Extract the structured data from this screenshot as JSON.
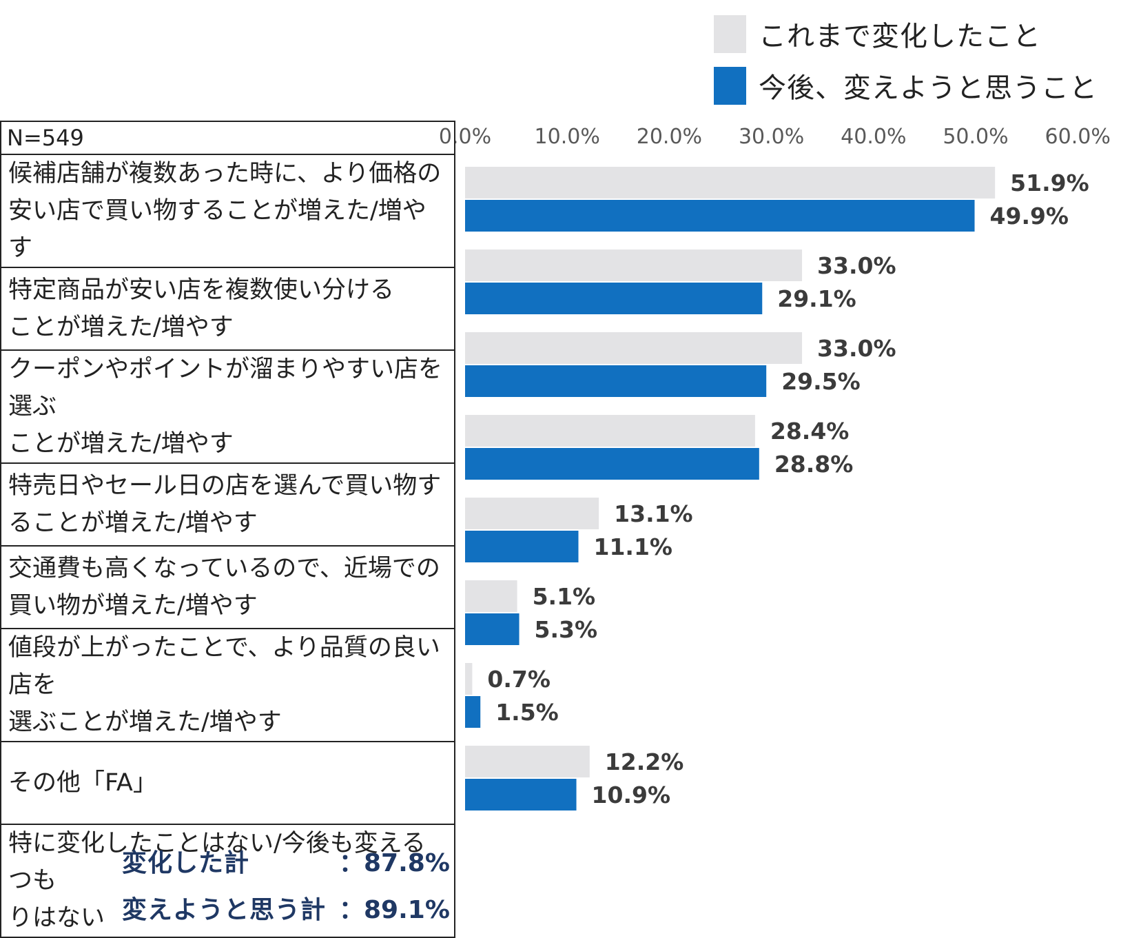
{
  "legend": {
    "previous_label": "これまで変化したこと",
    "future_label": "今後、変えようと思うこと"
  },
  "colors": {
    "previous": "#e3e3e5",
    "future": "#1170c0",
    "totals_text": "#1f3864"
  },
  "table": {
    "header": "N=549",
    "rows": [
      {
        "line1": "候補店舗が複数あった時に、より価格の",
        "line2": "安い店で買い物することが増えた/増やす"
      },
      {
        "line1": "特定商品が安い店を複数使い分ける",
        "line2": "ことが増えた/増やす"
      },
      {
        "line1": "クーポンやポイントが溜まりやすい店を選ぶ",
        "line2": "ことが増えた/増やす"
      },
      {
        "line1": "特売日やセール日の店を選んで買い物す",
        "line2": "ることが増えた/増やす"
      },
      {
        "line1": "交通費も高くなっているので、近場での",
        "line2": "買い物が増えた/増やす"
      },
      {
        "line1": "値段が上がったことで、より品質の良い店を",
        "line2": "選ぶことが増えた/増やす"
      },
      {
        "line1": "その他「FA」",
        "line2": ""
      },
      {
        "line1": "特に変化したことはない/今後も変えるつも",
        "line2": "りはない"
      }
    ]
  },
  "chart_data": {
    "type": "bar",
    "orientation": "horizontal",
    "xlim": [
      0,
      60
    ],
    "ticks": [
      "0.0%",
      "10.0%",
      "20.0%",
      "30.0%",
      "40.0%",
      "50.0%",
      "60.0%"
    ],
    "tick_values": [
      0,
      10,
      20,
      30,
      40,
      50,
      60
    ],
    "series": [
      {
        "name": "これまで変化したこと",
        "values": [
          51.9,
          33.0,
          33.0,
          28.4,
          13.1,
          5.1,
          0.7,
          12.2
        ],
        "labels": [
          "51.9%",
          "33.0%",
          "33.0%",
          "28.4%",
          "13.1%",
          "5.1%",
          "0.7%",
          "12.2%"
        ]
      },
      {
        "name": "今後、変えようと思うこと",
        "values": [
          49.9,
          29.1,
          29.5,
          28.8,
          11.1,
          5.3,
          1.5,
          10.9
        ],
        "labels": [
          "49.9%",
          "29.1%",
          "29.5%",
          "28.8%",
          "11.1%",
          "5.3%",
          "1.5%",
          "10.9%"
        ]
      }
    ]
  },
  "totals": {
    "changed_label": "変化した計",
    "changed_value": "：87.8%",
    "plan_label": "変えようと思う計",
    "plan_value": "：89.1%"
  }
}
